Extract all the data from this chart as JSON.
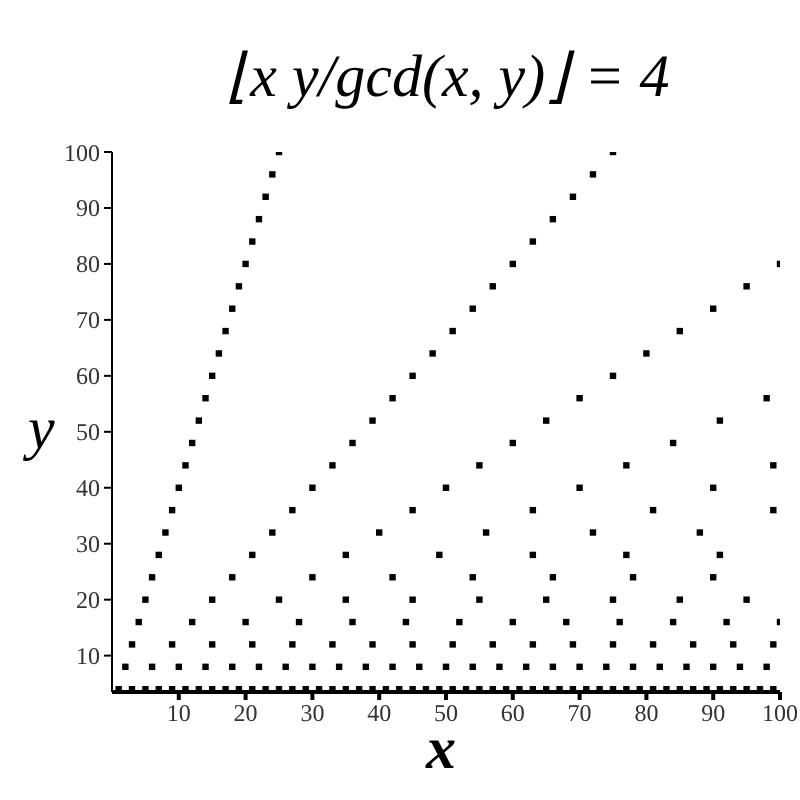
{
  "chart_data": {
    "type": "scatter",
    "title": "⌊x y/gcd(x, y)⌋ = 4",
    "xlabel": "x",
    "ylabel": "y",
    "xlim": [
      0,
      100
    ],
    "ylim": [
      3.5,
      100
    ],
    "xticks": [
      10,
      20,
      30,
      40,
      50,
      60,
      70,
      80,
      90,
      100
    ],
    "yticks": [
      10,
      20,
      30,
      40,
      50,
      60,
      70,
      80,
      90,
      100
    ],
    "grid": false,
    "legend": false,
    "marker": "square",
    "series": [
      {
        "color": "#000000",
        "x": [
          1,
          3,
          5,
          7,
          9,
          11,
          13,
          15,
          17,
          19,
          21,
          23,
          25,
          27,
          29,
          31,
          33,
          35,
          37,
          39,
          41,
          43,
          45,
          47,
          49,
          51,
          53,
          55,
          57,
          59,
          61,
          63,
          65,
          67,
          69,
          71,
          73,
          75,
          77,
          79,
          81,
          83,
          85,
          87,
          89,
          91,
          93,
          95,
          97,
          99,
          2,
          6,
          10,
          14,
          18,
          22,
          26,
          30,
          34,
          38,
          42,
          46,
          50,
          54,
          58,
          62,
          66,
          70,
          74,
          78,
          82,
          86,
          90,
          94,
          98,
          3,
          9,
          15,
          21,
          27,
          33,
          39,
          45,
          51,
          57,
          63,
          69,
          75,
          81,
          87,
          93,
          99,
          4,
          12,
          20,
          28,
          36,
          44,
          52,
          60,
          68,
          76,
          84,
          92,
          100,
          5,
          15,
          25,
          35,
          45,
          55,
          65,
          75,
          85,
          95,
          6,
          18,
          30,
          42,
          54,
          66,
          78,
          90,
          7,
          21,
          35,
          49,
          63,
          77,
          91,
          8,
          24,
          40,
          56,
          72,
          88,
          9,
          27,
          45,
          63,
          81,
          99,
          10,
          30,
          50,
          70,
          90,
          11,
          33,
          55,
          77,
          99,
          12,
          36,
          60,
          84,
          13,
          39,
          65,
          91,
          14,
          42,
          70,
          98,
          15,
          45,
          75,
          16,
          48,
          80,
          17,
          51,
          85,
          18,
          54,
          90,
          19,
          57,
          95,
          20,
          60,
          100,
          21,
          63,
          22,
          66,
          23,
          69,
          24,
          72,
          25,
          75
        ],
        "values": [
          4,
          4,
          4,
          4,
          4,
          4,
          4,
          4,
          4,
          4,
          4,
          4,
          4,
          4,
          4,
          4,
          4,
          4,
          4,
          4,
          4,
          4,
          4,
          4,
          4,
          4,
          4,
          4,
          4,
          4,
          4,
          4,
          4,
          4,
          4,
          4,
          4,
          4,
          4,
          4,
          4,
          4,
          4,
          4,
          4,
          4,
          4,
          4,
          4,
          4,
          8,
          8,
          8,
          8,
          8,
          8,
          8,
          8,
          8,
          8,
          8,
          8,
          8,
          8,
          8,
          8,
          8,
          8,
          8,
          8,
          8,
          8,
          8,
          8,
          8,
          12,
          12,
          12,
          12,
          12,
          12,
          12,
          12,
          12,
          12,
          12,
          12,
          12,
          12,
          12,
          12,
          12,
          16,
          16,
          16,
          16,
          16,
          16,
          16,
          16,
          16,
          16,
          16,
          16,
          16,
          20,
          20,
          20,
          20,
          20,
          20,
          20,
          20,
          20,
          20,
          24,
          24,
          24,
          24,
          24,
          24,
          24,
          24,
          28,
          28,
          28,
          28,
          28,
          28,
          28,
          32,
          32,
          32,
          32,
          32,
          32,
          36,
          36,
          36,
          36,
          36,
          36,
          40,
          40,
          40,
          40,
          40,
          44,
          44,
          44,
          44,
          44,
          48,
          48,
          48,
          48,
          52,
          52,
          52,
          52,
          56,
          56,
          56,
          56,
          60,
          60,
          60,
          64,
          64,
          64,
          68,
          68,
          68,
          72,
          72,
          72,
          76,
          76,
          76,
          80,
          80,
          80,
          84,
          84,
          88,
          88,
          92,
          92,
          96,
          96,
          100,
          100
        ]
      }
    ]
  }
}
